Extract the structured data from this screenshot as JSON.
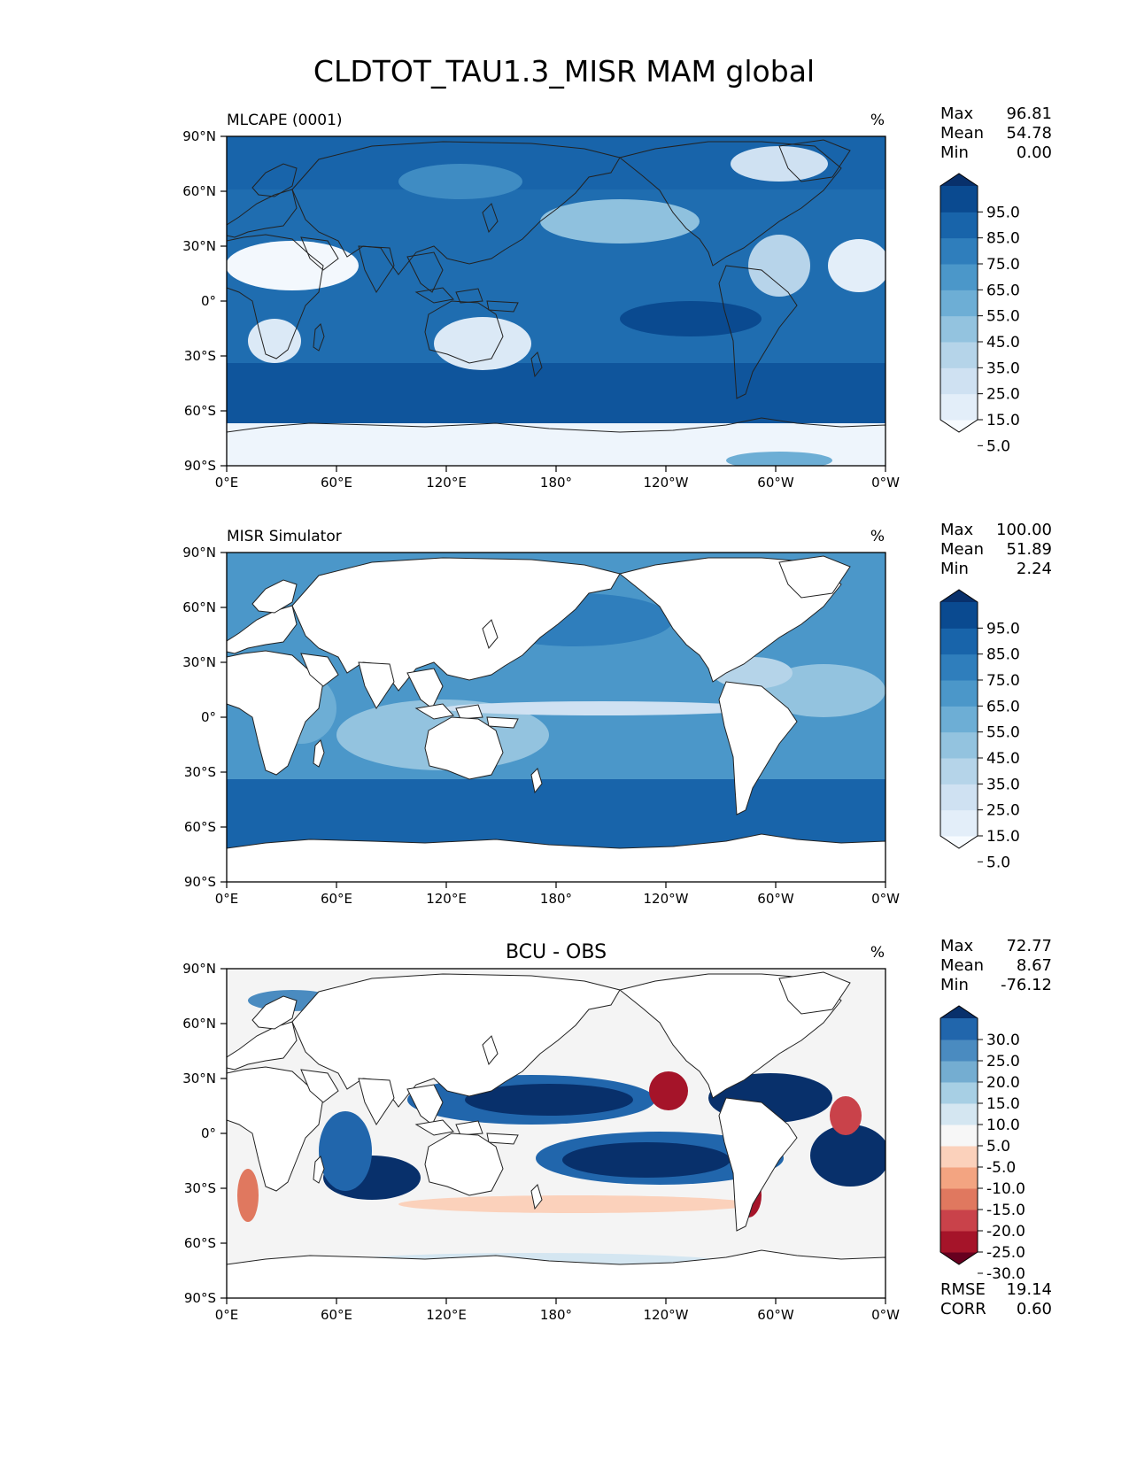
{
  "title": "CLDTOT_TAU1.3_MISR MAM global",
  "axes": {
    "lat_ticks": [
      "90°N",
      "60°N",
      "30°N",
      "0°",
      "30°S",
      "60°S",
      "90°S"
    ],
    "lon_ticks": [
      "0°E",
      "60°E",
      "120°E",
      "180°",
      "120°W",
      "60°W",
      "0°W"
    ]
  },
  "panels": [
    {
      "left_title": "MLCAPE (0001)",
      "center_title": "",
      "units": "%",
      "stats": [
        {
          "label": "Max",
          "value": "96.81"
        },
        {
          "label": "Mean",
          "value": "54.78"
        },
        {
          "label": "Min",
          "value": "0.00"
        }
      ],
      "colorbar": {
        "labels": [
          "95.0",
          "85.0",
          "75.0",
          "65.0",
          "55.0",
          "45.0",
          "35.0",
          "25.0",
          "15.0",
          "5.0"
        ],
        "colors": [
          "#f7fbff",
          "#e3eef9",
          "#cfe1f2",
          "#b5d4e9",
          "#93c3df",
          "#6daed5",
          "#4b97c9",
          "#2f7ebc",
          "#1864aa",
          "#0a4a90",
          "#08306b"
        ]
      }
    },
    {
      "left_title": "MISR Simulator",
      "center_title": "",
      "units": "%",
      "stats": [
        {
          "label": "Max",
          "value": "100.00"
        },
        {
          "label": "Mean",
          "value": "51.89"
        },
        {
          "label": "Min",
          "value": "2.24"
        }
      ],
      "colorbar": {
        "labels": [
          "95.0",
          "85.0",
          "75.0",
          "65.0",
          "55.0",
          "45.0",
          "35.0",
          "25.0",
          "15.0",
          "5.0"
        ],
        "colors": [
          "#f7fbff",
          "#e3eef9",
          "#cfe1f2",
          "#b5d4e9",
          "#93c3df",
          "#6daed5",
          "#4b97c9",
          "#2f7ebc",
          "#1864aa",
          "#0a4a90",
          "#08306b"
        ]
      }
    },
    {
      "left_title": "",
      "center_title": "BCU - OBS",
      "units": "%",
      "stats": [
        {
          "label": "Max",
          "value": "72.77"
        },
        {
          "label": "Mean",
          "value": "8.67"
        },
        {
          "label": "Min",
          "value": "-76.12"
        }
      ],
      "colorbar": {
        "labels": [
          "30.0",
          "25.0",
          "20.0",
          "15.0",
          "10.0",
          "5.0",
          "-5.0",
          "-10.0",
          "-15.0",
          "-20.0",
          "-25.0",
          "-30.0"
        ],
        "colors": [
          "#67001f",
          "#a51429",
          "#c9424a",
          "#e0785f",
          "#f3a481",
          "#fbd1bb",
          "#f7f7f7",
          "#d4e6f1",
          "#a7cfe4",
          "#74add1",
          "#4a8bc0",
          "#2166ac",
          "#08306b"
        ]
      },
      "bottom_stats": [
        {
          "label": "RMSE",
          "value": "19.14"
        },
        {
          "label": "CORR",
          "value": "0.60"
        }
      ]
    }
  ]
}
